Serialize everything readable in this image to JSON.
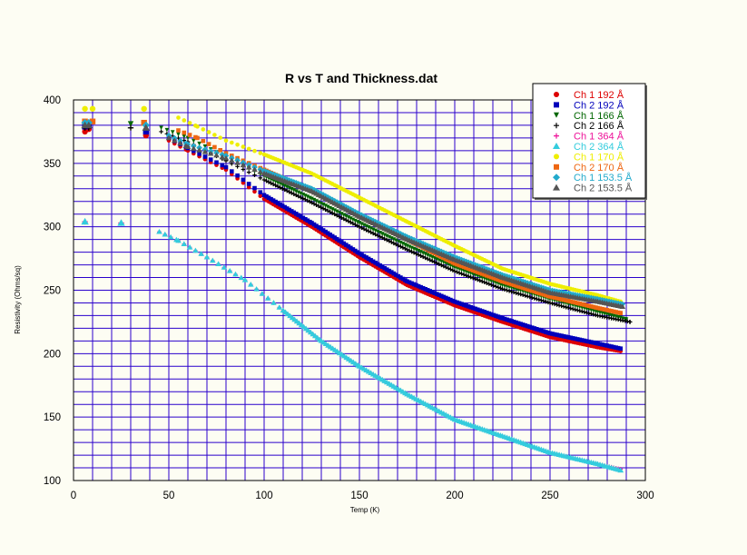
{
  "chart_data": {
    "type": "scatter",
    "title": "R vs T and Thickness.dat",
    "xlabel": "Temp (K)",
    "ylabel": "Resistivity (Ohms/sq)",
    "xlim": [
      0,
      300
    ],
    "ylim": [
      100,
      400
    ],
    "x_ticks": [
      "0",
      "50",
      "100",
      "150",
      "200",
      "250",
      "300"
    ],
    "y_ticks": [
      "100",
      "150",
      "200",
      "250",
      "300",
      "350",
      "400"
    ],
    "grid": true,
    "legend_position": "top-right",
    "series": [
      {
        "name": "Ch 1 192 Å",
        "color": "#dd0000",
        "marker": "circle",
        "points": [
          [
            6,
            375
          ],
          [
            8,
            377
          ],
          [
            38,
            372
          ],
          [
            50,
            368
          ],
          [
            60,
            360
          ],
          [
            80,
            345
          ],
          [
            100,
            322
          ],
          [
            125,
            300
          ],
          [
            150,
            276
          ],
          [
            175,
            254
          ],
          [
            200,
            238
          ],
          [
            225,
            225
          ],
          [
            250,
            213
          ],
          [
            275,
            205
          ],
          [
            287,
            202
          ]
        ]
      },
      {
        "name": "Ch 2 192 Å",
        "color": "#0000bb",
        "marker": "square",
        "points": [
          [
            6,
            379
          ],
          [
            8,
            380
          ],
          [
            38,
            375
          ],
          [
            50,
            370
          ],
          [
            60,
            362
          ],
          [
            80,
            347
          ],
          [
            100,
            325
          ],
          [
            125,
            303
          ],
          [
            150,
            279
          ],
          [
            175,
            257
          ],
          [
            200,
            241
          ],
          [
            225,
            228
          ],
          [
            250,
            216
          ],
          [
            275,
            208
          ],
          [
            287,
            204
          ]
        ]
      },
      {
        "name": "Ch 1 166 Å",
        "color": "#006600",
        "marker": "triangle-down",
        "points": [
          [
            6,
            381
          ],
          [
            8,
            381
          ],
          [
            30,
            381
          ],
          [
            46,
            378
          ],
          [
            60,
            370
          ],
          [
            80,
            355
          ],
          [
            100,
            340
          ],
          [
            125,
            322
          ],
          [
            150,
            303
          ],
          [
            175,
            285
          ],
          [
            200,
            268
          ],
          [
            225,
            254
          ],
          [
            250,
            243
          ],
          [
            275,
            233
          ],
          [
            290,
            227
          ]
        ]
      },
      {
        "name": "Ch 2 166 Å",
        "color": "#000000",
        "marker": "plus",
        "points": [
          [
            6,
            378
          ],
          [
            8,
            378
          ],
          [
            30,
            378
          ],
          [
            46,
            375
          ],
          [
            60,
            367
          ],
          [
            80,
            352
          ],
          [
            100,
            337
          ],
          [
            125,
            319
          ],
          [
            150,
            300
          ],
          [
            175,
            282
          ],
          [
            200,
            265
          ],
          [
            225,
            251
          ],
          [
            250,
            240
          ],
          [
            275,
            230
          ],
          [
            292,
            225
          ]
        ]
      },
      {
        "name": "Ch 1 364 Å",
        "color": "#ee1199",
        "marker": "plus",
        "points": [
          [
            6,
            304
          ],
          [
            25,
            303
          ],
          [
            45,
            296
          ],
          [
            55,
            289
          ],
          [
            70,
            276
          ],
          [
            90,
            258
          ],
          [
            110,
            234
          ],
          [
            130,
            210
          ],
          [
            150,
            190
          ],
          [
            175,
            168
          ],
          [
            200,
            148
          ],
          [
            225,
            135
          ],
          [
            250,
            122
          ],
          [
            275,
            113
          ],
          [
            287,
            109
          ]
        ]
      },
      {
        "name": "Ch 2 364 Å",
        "color": "#33ccdd",
        "marker": "triangle",
        "points": [
          [
            6,
            304
          ],
          [
            25,
            303
          ],
          [
            45,
            296
          ],
          [
            55,
            289
          ],
          [
            70,
            276
          ],
          [
            90,
            258
          ],
          [
            110,
            234
          ],
          [
            130,
            210
          ],
          [
            150,
            190
          ],
          [
            175,
            168
          ],
          [
            200,
            148
          ],
          [
            225,
            135
          ],
          [
            250,
            122
          ],
          [
            275,
            113
          ],
          [
            287,
            108
          ]
        ]
      },
      {
        "name": "Ch 1 170 Å",
        "color": "#eeee00",
        "marker": "circle",
        "points": [
          [
            6,
            393
          ],
          [
            10,
            393
          ],
          [
            37,
            393
          ],
          [
            55,
            386
          ],
          [
            65,
            379
          ],
          [
            80,
            368
          ],
          [
            100,
            357
          ],
          [
            125,
            342
          ],
          [
            150,
            323
          ],
          [
            175,
            304
          ],
          [
            200,
            285
          ],
          [
            225,
            267
          ],
          [
            250,
            255
          ],
          [
            275,
            246
          ],
          [
            287,
            241
          ]
        ]
      },
      {
        "name": "Ch 2 170 Å",
        "color": "#ee6611",
        "marker": "square",
        "points": [
          [
            6,
            383
          ],
          [
            10,
            383
          ],
          [
            37,
            382
          ],
          [
            55,
            376
          ],
          [
            65,
            370
          ],
          [
            80,
            358
          ],
          [
            100,
            345
          ],
          [
            125,
            328
          ],
          [
            150,
            308
          ],
          [
            175,
            290
          ],
          [
            200,
            271
          ],
          [
            225,
            257
          ],
          [
            250,
            245
          ],
          [
            275,
            236
          ],
          [
            287,
            232
          ]
        ]
      },
      {
        "name": "Ch 1 153.5 Å",
        "color": "#22aacc",
        "marker": "diamond",
        "points": [
          [
            6,
            382
          ],
          [
            8,
            382
          ],
          [
            38,
            380
          ],
          [
            50,
            372
          ],
          [
            60,
            365
          ],
          [
            80,
            356
          ],
          [
            100,
            344
          ],
          [
            125,
            330
          ],
          [
            150,
            310
          ],
          [
            175,
            292
          ],
          [
            200,
            276
          ],
          [
            225,
            262
          ],
          [
            250,
            250
          ],
          [
            275,
            243
          ],
          [
            288,
            239
          ]
        ]
      },
      {
        "name": "Ch 2 153.5 Å",
        "color": "#555555",
        "marker": "triangle",
        "points": [
          [
            6,
            380
          ],
          [
            8,
            380
          ],
          [
            38,
            378
          ],
          [
            50,
            370
          ],
          [
            60,
            363
          ],
          [
            80,
            354
          ],
          [
            100,
            342
          ],
          [
            125,
            328
          ],
          [
            150,
            308
          ],
          [
            175,
            290
          ],
          [
            200,
            274
          ],
          [
            225,
            260
          ],
          [
            250,
            248
          ],
          [
            275,
            241
          ],
          [
            288,
            237
          ]
        ]
      }
    ]
  }
}
